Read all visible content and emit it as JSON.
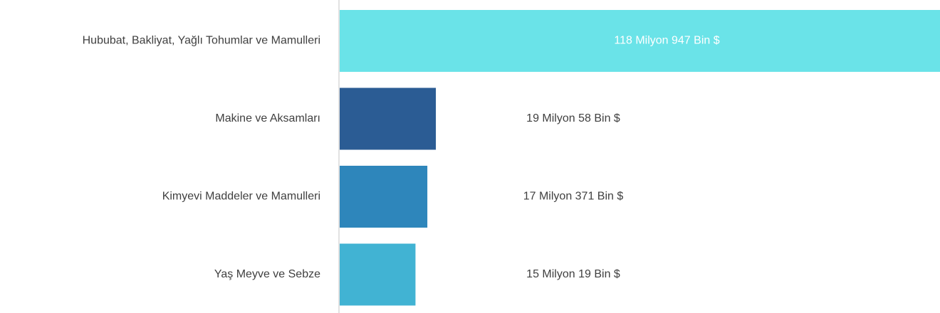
{
  "chart_data": {
    "type": "bar",
    "orientation": "horizontal",
    "categories": [
      "Hububat, Bakliyat, Yağlı Tohumlar ve Mamulleri",
      "Makine ve Aksamları",
      "Kimyevi Maddeler ve Mamulleri",
      "Yaş Meyve ve Sebze"
    ],
    "values": [
      118947000,
      19058000,
      17371000,
      15019000
    ],
    "value_labels": [
      "118 Milyon 947 Bin $",
      "19 Milyon 58 Bin $",
      "17 Milyon 371 Bin $",
      "15 Milyon 19 Bin $"
    ],
    "colors": [
      "#6ae3e8",
      "#2b5c94",
      "#2e86bb",
      "#41b3d3"
    ]
  }
}
